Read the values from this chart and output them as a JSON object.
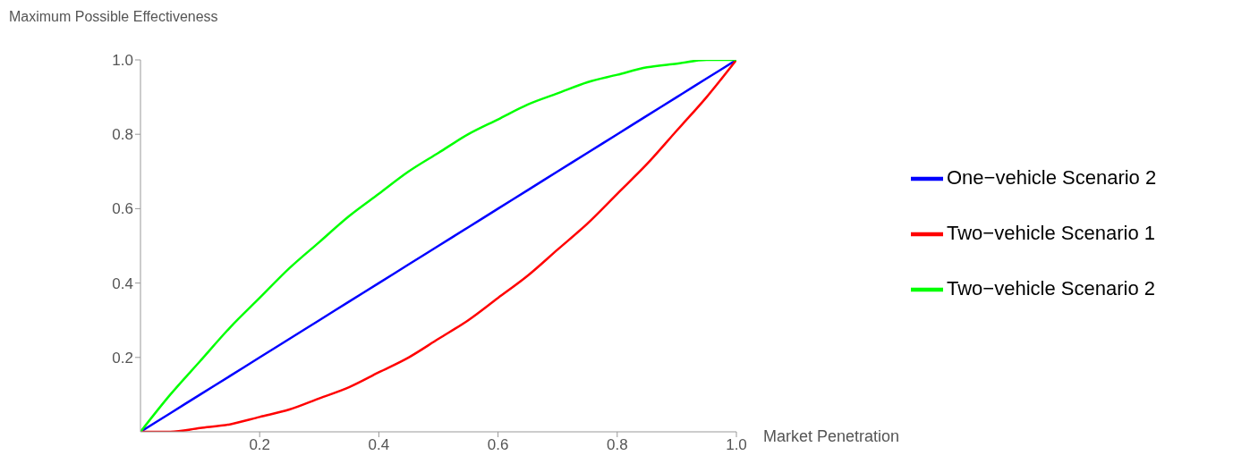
{
  "chart_data": {
    "type": "line",
    "xlabel": "Market Penetration",
    "ylabel": "Maximum Possible Effectiveness",
    "x": [
      0,
      0.05,
      0.1,
      0.15,
      0.2,
      0.25,
      0.3,
      0.35,
      0.4,
      0.45,
      0.5,
      0.55,
      0.6,
      0.65,
      0.7,
      0.75,
      0.8,
      0.85,
      0.9,
      0.95,
      1
    ],
    "series": [
      {
        "name": "One−vehicle Scenario 2",
        "color": "#0000ff",
        "values": [
          0,
          0.05,
          0.1,
          0.15,
          0.2,
          0.25,
          0.3,
          0.35,
          0.4,
          0.45,
          0.5,
          0.55,
          0.6,
          0.65,
          0.7,
          0.75,
          0.8,
          0.85,
          0.9,
          0.95,
          1
        ]
      },
      {
        "name": "Two−vehicle Scenario 1",
        "color": "#ff0000",
        "values": [
          0,
          0,
          0.01,
          0.02,
          0.04,
          0.06,
          0.09,
          0.12,
          0.16,
          0.2,
          0.25,
          0.3,
          0.36,
          0.42,
          0.49,
          0.56,
          0.64,
          0.72,
          0.81,
          0.9,
          1
        ]
      },
      {
        "name": "Two−vehicle Scenario 2",
        "color": "#00ff00",
        "values": [
          0,
          0.1,
          0.19,
          0.28,
          0.36,
          0.44,
          0.51,
          0.58,
          0.64,
          0.7,
          0.75,
          0.8,
          0.84,
          0.88,
          0.91,
          0.94,
          0.96,
          0.98,
          0.99,
          1,
          1
        ]
      }
    ],
    "xlim": [
      0,
      1
    ],
    "xticks": [
      0.2,
      0.4,
      0.6,
      0.8,
      {
        "value": 1,
        "label": "1.0"
      }
    ],
    "ylim": [
      0,
      1
    ],
    "yticks": [
      0.2,
      0.4,
      0.6,
      0.8,
      {
        "value": 1,
        "label": "1.0"
      }
    ],
    "legend": "right",
    "marker": "none",
    "line_style": "solid"
  }
}
